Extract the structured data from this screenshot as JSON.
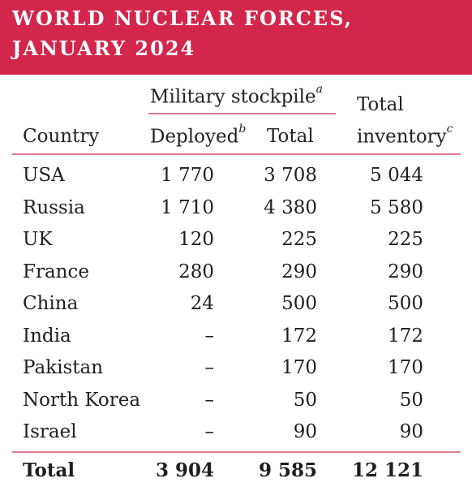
{
  "title": {
    "line1": "WORLD NUCLEAR FORCES,",
    "line2": "JANUARY 2024"
  },
  "headers": {
    "military_stockpile": "Military stockpile",
    "military_stockpile_note": "a",
    "country": "Country",
    "deployed": "Deployed",
    "deployed_note": "b",
    "total": "Total",
    "total_inventory_line1": "Total",
    "total_inventory_line2": "inventory",
    "total_inventory_note": "c"
  },
  "rows": [
    {
      "country": "USA",
      "deployed": "1 770",
      "total": "3 708",
      "inventory": "5 044"
    },
    {
      "country": "Russia",
      "deployed": "1 710",
      "total": "4 380",
      "inventory": "5 580"
    },
    {
      "country": "UK",
      "deployed": "120",
      "total": "225",
      "inventory": "225"
    },
    {
      "country": "France",
      "deployed": "280",
      "total": "290",
      "inventory": "290"
    },
    {
      "country": "China",
      "deployed": "24",
      "total": "500",
      "inventory": "500"
    },
    {
      "country": "India",
      "deployed": "–",
      "total": "172",
      "inventory": "172"
    },
    {
      "country": "Pakistan",
      "deployed": "–",
      "total": "170",
      "inventory": "170"
    },
    {
      "country": "North Korea",
      "deployed": "–",
      "total": "50",
      "inventory": "50"
    },
    {
      "country": "Israel",
      "deployed": "–",
      "total": "90",
      "inventory": "90"
    }
  ],
  "total_row": {
    "country": "Total",
    "deployed": "3 904",
    "total": "9 585",
    "inventory": "12 121"
  },
  "colors": {
    "banner": "#d3264b",
    "rule": "#e07a90",
    "text": "#1f1f1f"
  }
}
